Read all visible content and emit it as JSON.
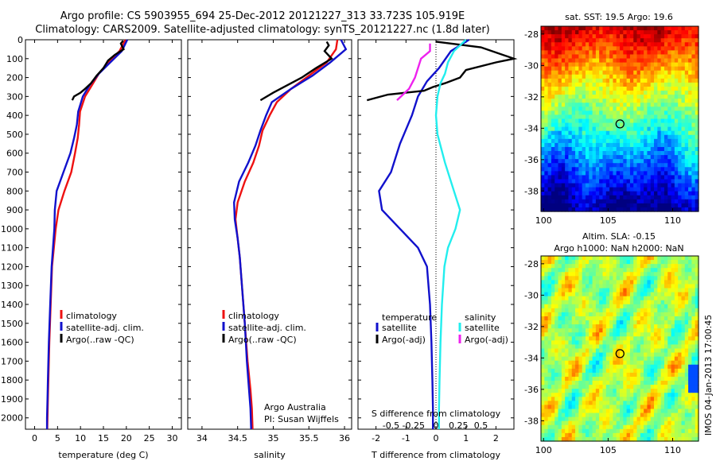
{
  "header": {
    "line1": "Argo profile: CS 5903955_694 25-Dec-2012 20121227_313 33.723S 105.919E",
    "line2": "Climatology: CARS2009. Satellite-adjusted climatology: synTS_20121227.nc (1.8d later)"
  },
  "timestamp": "IMOS 04-Jan-2013 17:00:45",
  "colors": {
    "red": "#ee1111",
    "blue": "#1111cc",
    "black": "#000000",
    "cyan": "#22eeee",
    "magenta": "#ee22ee"
  },
  "chart_data": [
    {
      "type": "line",
      "panel": "temperature",
      "xlabel": "temperature (deg C)",
      "ylabel": "",
      "xlim": [
        -2,
        32
      ],
      "ylim": [
        2060,
        0
      ],
      "xticks": [
        0,
        5,
        10,
        15,
        20,
        25,
        30
      ],
      "yticks": [
        0,
        100,
        200,
        300,
        400,
        500,
        600,
        700,
        800,
        900,
        1000,
        1100,
        1200,
        1300,
        1400,
        1500,
        1600,
        1700,
        1800,
        1900,
        2000
      ],
      "legend": [
        "climatology",
        "satellite-adj. clim.",
        "Argo(..raw -QC)"
      ],
      "series": [
        {
          "name": "climatology",
          "color": "#ee1111",
          "x": [
            19.8,
            18.5,
            16,
            14,
            12.5,
            11,
            9.9,
            9.7,
            9.4,
            8.8,
            8,
            6.5,
            5.2,
            4.6,
            4.2,
            3.8,
            3.5,
            3.2,
            3,
            2.9,
            2.8,
            2.75
          ],
          "y": [
            0,
            60,
            120,
            180,
            240,
            300,
            380,
            450,
            520,
            600,
            700,
            800,
            900,
            1000,
            1100,
            1200,
            1400,
            1600,
            1800,
            1900,
            2000,
            2060
          ]
        },
        {
          "name": "satellite-adj. clim.",
          "color": "#1111cc",
          "x": [
            20.2,
            19,
            16.5,
            14,
            12,
            10.5,
            9.5,
            9.2,
            8.6,
            7.8,
            6.3,
            4.8,
            4.4,
            4.3,
            4,
            3.7,
            3.4,
            3.1,
            2.9,
            2.8,
            2.7,
            2.7
          ],
          "y": [
            0,
            60,
            120,
            180,
            240,
            300,
            380,
            450,
            520,
            600,
            700,
            800,
            900,
            1000,
            1100,
            1200,
            1400,
            1600,
            1800,
            1900,
            2000,
            2060
          ]
        },
        {
          "name": "Argo(..raw -QC)",
          "color": "#000000",
          "x": [
            19.3,
            18.8,
            19.4,
            17.5,
            16,
            15,
            13.5,
            12.3,
            11,
            10,
            8.6,
            8.2
          ],
          "y": [
            5,
            20,
            50,
            80,
            110,
            150,
            190,
            230,
            260,
            280,
            300,
            320
          ]
        }
      ]
    },
    {
      "type": "line",
      "panel": "salinity",
      "xlabel": "salinity",
      "ylabel": "",
      "xlim": [
        33.8,
        36.1
      ],
      "ylim": [
        2060,
        0
      ],
      "xticks": [
        34,
        34.5,
        35,
        35.5,
        36
      ],
      "legend": [
        "climatology",
        "satellite-adj. clim.",
        "Argo(..raw -QC)"
      ],
      "annotations": [
        "Argo Australia",
        "PI: Susan Wijffels"
      ],
      "series": [
        {
          "name": "climatology",
          "color": "#ee1111",
          "x": [
            35.9,
            35.88,
            35.75,
            35.5,
            35.25,
            35.05,
            34.95,
            34.85,
            34.8,
            34.72,
            34.6,
            34.5,
            34.47,
            34.5,
            34.53,
            34.56,
            34.6,
            34.64,
            34.68,
            34.7,
            34.71
          ],
          "y": [
            0,
            50,
            120,
            190,
            260,
            330,
            400,
            480,
            560,
            650,
            750,
            860,
            950,
            1050,
            1150,
            1300,
            1500,
            1700,
            1850,
            1950,
            2060
          ]
        },
        {
          "name": "satellite-adj. clim.",
          "color": "#1111cc",
          "x": [
            35.95,
            36.02,
            35.8,
            35.55,
            35.25,
            34.98,
            34.9,
            34.82,
            34.75,
            34.65,
            34.52,
            34.45,
            34.46,
            34.5,
            34.53,
            34.56,
            34.6,
            34.63,
            34.66,
            34.68,
            34.69
          ],
          "y": [
            0,
            50,
            120,
            190,
            260,
            330,
            400,
            480,
            560,
            650,
            750,
            860,
            950,
            1050,
            1150,
            1300,
            1500,
            1700,
            1850,
            1950,
            2060
          ]
        },
        {
          "name": "Argo(..raw -QC)",
          "color": "#000000",
          "x": [
            35.75,
            35.78,
            35.72,
            35.82,
            35.6,
            35.4,
            35.2,
            35.0,
            34.82
          ],
          "y": [
            10,
            30,
            60,
            100,
            150,
            200,
            240,
            280,
            320
          ]
        }
      ]
    },
    {
      "type": "line",
      "panel": "difference",
      "xlabel": "T difference from climatology",
      "ylabel": "",
      "title": "S difference from climatology",
      "xlim": [
        -2.6,
        2.6
      ],
      "ylim": [
        2060,
        0
      ],
      "xticks": [
        -2,
        -1,
        0,
        1,
        2
      ],
      "top_ticks": [
        "-0.5",
        "-0.25",
        "0",
        "0.25",
        "0.5"
      ],
      "legend_temperature": {
        "title": "temperature",
        "items": [
          "satellite",
          "Argo(-adj)"
        ]
      },
      "legend_salinity": {
        "title": "salinity",
        "items": [
          "satellite",
          "Argo(-adj)"
        ]
      },
      "series": [
        {
          "name": "satellite",
          "color": "#1111cc",
          "x": [
            1.1,
            0.5,
            0.1,
            -0.3,
            -0.6,
            -0.8,
            -1.2,
            -1.5,
            -1.9,
            -1.8,
            -1.2,
            -0.6,
            -0.3,
            -0.2,
            -0.15,
            -0.12,
            -0.1,
            -0.1
          ],
          "y": [
            0,
            60,
            150,
            220,
            300,
            400,
            550,
            700,
            800,
            900,
            1000,
            1100,
            1200,
            1400,
            1600,
            1800,
            1950,
            2060
          ]
        },
        {
          "name": "Argo(-adj)",
          "color": "#000000",
          "x": [
            0,
            1.5,
            2.6,
            2,
            1,
            0.8,
            0.3,
            -0.1,
            -0.4,
            -1.6,
            -2.3
          ],
          "y": [
            10,
            40,
            100,
            120,
            160,
            200,
            230,
            250,
            270,
            290,
            320
          ]
        },
        {
          "name": "satellite",
          "color": "#22eeee",
          "x": [
            1.0,
            0.6,
            0.4,
            0.3,
            0.15,
            0.05,
            0.0,
            0.05,
            0.3,
            0.6,
            0.8,
            0.65,
            0.4,
            0.28,
            0.2,
            0.15,
            0.12,
            0.1,
            0.1
          ],
          "y": [
            0,
            60,
            120,
            180,
            230,
            300,
            400,
            500,
            650,
            800,
            900,
            1000,
            1100,
            1200,
            1400,
            1600,
            1800,
            1950,
            2060
          ]
        },
        {
          "name": "Argo(-adj)",
          "color": "#ee22ee",
          "x": [
            -0.2,
            -0.2,
            -0.5,
            -0.7,
            -0.9,
            -1.1,
            -1.3
          ],
          "y": [
            20,
            60,
            100,
            200,
            260,
            290,
            320
          ]
        }
      ]
    },
    {
      "type": "heatmap",
      "panel": "sst-map",
      "title": "sat. SST: 19.5 Argo: 19.6",
      "xticks": [
        "100",
        "105",
        "110"
      ],
      "yticks": [
        "-28",
        "-30",
        "-32",
        "-34",
        "-36",
        "-38"
      ],
      "marker": {
        "lon": 105.919,
        "lat": -33.723
      }
    },
    {
      "type": "heatmap",
      "panel": "sla-map",
      "title": "Altim. SLA: -0.15",
      "subtitle": "Argo h1000: NaN h2000: NaN",
      "xticks": [
        "100",
        "105",
        "110"
      ],
      "yticks": [
        "-28",
        "-30",
        "-32",
        "-34",
        "-36",
        "-38"
      ],
      "marker": {
        "lon": 105.919,
        "lat": -33.723
      }
    }
  ]
}
